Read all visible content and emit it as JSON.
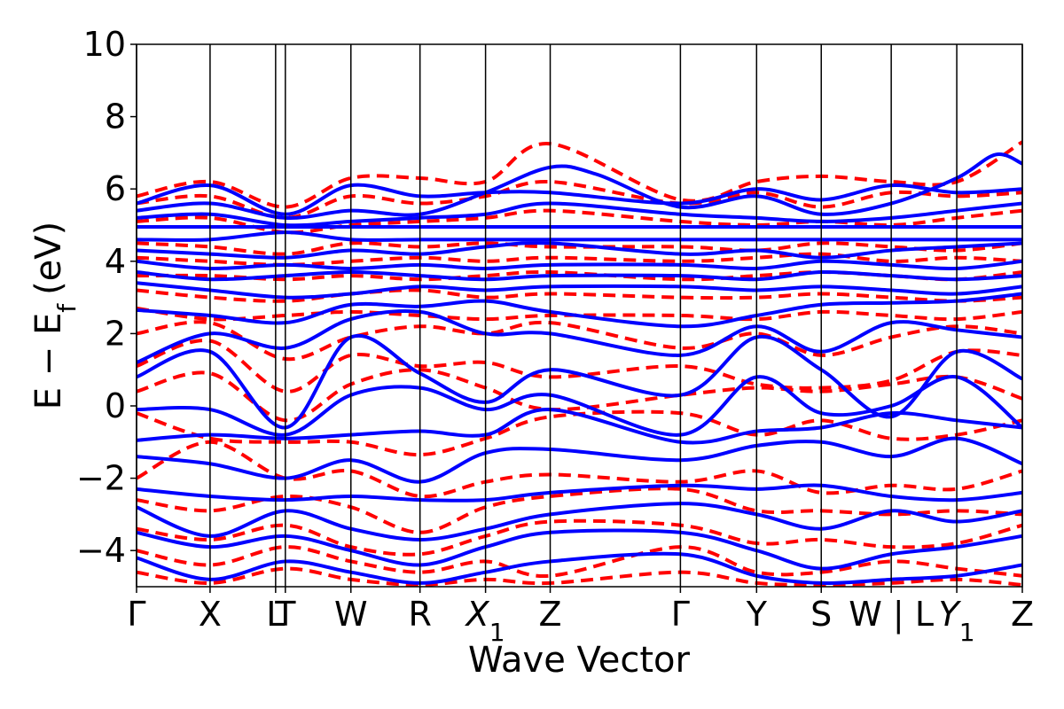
{
  "chart_data": {
    "type": "line",
    "xlabel": "Wave Vector",
    "ylabel": "E − E_f (eV)",
    "ylabel_parts": {
      "main": "E − E",
      "sub": "f",
      "unit": "(eV)"
    },
    "ylim": [
      -5,
      10
    ],
    "yticks": [
      -4,
      -2,
      0,
      2,
      4,
      6,
      8,
      10
    ],
    "ytick_labels": [
      "−4",
      "−2",
      "0",
      "2",
      "4",
      "6",
      "8",
      "10"
    ],
    "xlim": [
      0,
      10
    ],
    "kpoints": [
      {
        "label": "Γ",
        "x": 0.0
      },
      {
        "label": "X",
        "x": 0.83
      },
      {
        "label": "L",
        "x": 1.57
      },
      {
        "label": "T",
        "x": 1.68
      },
      {
        "label": "W",
        "x": 2.42
      },
      {
        "label": "R",
        "x": 3.2
      },
      {
        "label": "X",
        "sub": "1",
        "x": 3.94
      },
      {
        "label": "Z",
        "x": 4.67
      },
      {
        "label": "Γ",
        "x": 6.14
      },
      {
        "label": "Y",
        "x": 7.0
      },
      {
        "label": "S",
        "x": 7.73
      },
      {
        "label": "W | L",
        "x": 8.52
      },
      {
        "label": "Y",
        "sub": "1",
        "x": 9.26
      },
      {
        "label": "Z",
        "x": 10.0
      }
    ],
    "grid": false,
    "legend": "none",
    "series_styles": [
      {
        "color": "#0000ff",
        "dash": "solid"
      },
      {
        "color": "#ff0000",
        "dash": "dashed"
      }
    ],
    "series": [
      {
        "style": 0,
        "x": [
          0,
          0.83,
          1.68,
          2.42,
          3.2,
          3.94,
          4.67,
          6.14,
          7.0,
          7.73,
          8.52,
          9.26,
          10.0
        ],
        "y": [
          4.95,
          4.95,
          4.95,
          4.95,
          4.95,
          4.95,
          4.95,
          4.95,
          4.95,
          4.95,
          4.95,
          4.95,
          4.95
        ]
      },
      {
        "style": 0,
        "x": [
          0,
          0.83,
          1.68,
          2.42,
          3.2,
          3.94,
          4.67,
          6.14,
          7.0,
          7.73,
          8.52,
          9.26,
          10.0
        ],
        "y": [
          5.6,
          6.1,
          5.3,
          6.1,
          5.8,
          5.9,
          5.9,
          5.6,
          6.0,
          5.7,
          6.1,
          5.9,
          6.0
        ]
      },
      {
        "style": 0,
        "x": [
          0,
          0.83,
          1.68,
          2.42,
          3.2,
          3.94,
          4.67,
          5.2,
          6.14,
          7.0,
          7.73,
          8.52,
          9.26,
          9.7,
          10.0
        ],
        "y": [
          5.4,
          5.6,
          5.2,
          5.4,
          5.3,
          5.9,
          6.6,
          6.4,
          5.5,
          5.8,
          5.3,
          5.6,
          6.3,
          6.95,
          6.7
        ]
      },
      {
        "style": 0,
        "x": [
          0,
          0.83,
          1.68,
          2.42,
          3.2,
          3.94,
          4.67,
          6.14,
          7.0,
          7.73,
          8.52,
          9.26,
          10.0
        ],
        "y": [
          5.2,
          5.3,
          5.0,
          5.1,
          5.2,
          5.3,
          5.6,
          5.3,
          5.2,
          5.1,
          5.2,
          5.4,
          5.6
        ]
      },
      {
        "style": 0,
        "x": [
          0,
          0.83,
          1.68,
          2.42,
          3.2,
          3.94,
          4.67,
          6.14,
          7.0,
          7.73,
          8.52,
          9.26,
          10.0
        ],
        "y": [
          4.6,
          4.6,
          4.8,
          4.6,
          4.6,
          4.6,
          4.6,
          4.6,
          4.6,
          4.6,
          4.6,
          4.6,
          4.6
        ]
      },
      {
        "style": 0,
        "x": [
          0,
          0.83,
          1.68,
          2.42,
          3.2,
          3.94,
          4.67,
          6.14,
          7.0,
          7.73,
          8.52,
          9.26,
          10.0
        ],
        "y": [
          4.3,
          4.2,
          4.1,
          4.3,
          4.2,
          4.4,
          4.5,
          4.2,
          4.3,
          4.1,
          4.3,
          4.4,
          4.5
        ]
      },
      {
        "style": 0,
        "x": [
          0,
          0.83,
          1.68,
          2.42,
          3.2,
          3.94,
          4.67,
          6.14,
          7.0,
          7.73,
          8.52,
          9.26,
          10.0
        ],
        "y": [
          4.0,
          3.8,
          3.9,
          3.8,
          3.9,
          3.8,
          3.9,
          3.9,
          3.8,
          4.0,
          3.9,
          3.8,
          4.0
        ]
      },
      {
        "style": 0,
        "x": [
          0,
          0.83,
          1.68,
          2.42,
          3.2,
          3.94,
          4.67,
          6.14,
          7.0,
          7.73,
          8.52,
          9.26,
          10.0
        ],
        "y": [
          3.7,
          3.5,
          3.6,
          3.7,
          3.6,
          3.5,
          3.6,
          3.6,
          3.5,
          3.7,
          3.6,
          3.5,
          3.6
        ]
      },
      {
        "style": 0,
        "x": [
          0,
          0.83,
          1.68,
          2.42,
          3.2,
          3.94,
          4.67,
          6.14,
          7.0,
          7.73,
          8.52,
          9.26,
          10.0
        ],
        "y": [
          3.4,
          3.2,
          3.0,
          3.1,
          3.3,
          3.2,
          3.3,
          3.3,
          3.2,
          3.3,
          3.2,
          3.1,
          3.3
        ]
      },
      {
        "style": 0,
        "x": [
          0,
          0.83,
          1.68,
          2.42,
          3.2,
          3.94,
          4.67,
          6.14,
          7.0,
          7.73,
          8.52,
          9.26,
          10.0
        ],
        "y": [
          2.65,
          2.5,
          2.3,
          2.8,
          2.75,
          2.9,
          2.6,
          2.2,
          2.5,
          2.8,
          2.85,
          2.9,
          3.1
        ]
      },
      {
        "style": 0,
        "x": [
          0,
          0.83,
          1.68,
          2.42,
          3.2,
          3.94,
          4.67,
          6.14,
          7.0,
          7.73,
          8.52,
          9.26,
          10.0
        ],
        "y": [
          1.2,
          2.0,
          1.6,
          2.4,
          2.6,
          2.0,
          2.0,
          1.4,
          2.2,
          1.5,
          2.3,
          2.1,
          1.9
        ]
      },
      {
        "style": 0,
        "x": [
          0,
          0.83,
          1.68,
          2.42,
          3.2,
          3.94,
          4.67,
          6.14,
          7.0,
          7.73,
          8.52,
          9.26,
          10.0
        ],
        "y": [
          0.8,
          1.5,
          -0.6,
          1.9,
          0.9,
          0.1,
          1.0,
          0.3,
          1.9,
          1.0,
          -0.3,
          1.5,
          0.75
        ]
      },
      {
        "style": 0,
        "x": [
          0,
          0.83,
          1.68,
          2.42,
          3.2,
          3.94,
          4.67,
          6.14,
          7.0,
          7.73,
          8.52,
          9.26,
          10.0
        ],
        "y": [
          -0.1,
          -0.1,
          -0.8,
          0.3,
          0.5,
          -0.1,
          0.3,
          -0.8,
          0.8,
          -0.2,
          0.0,
          0.8,
          -0.6
        ]
      },
      {
        "style": 0,
        "x": [
          0,
          0.83,
          1.68,
          2.42,
          3.2,
          3.94,
          4.67,
          6.14,
          7.0,
          7.73,
          8.52,
          9.26,
          10.0
        ],
        "y": [
          -0.95,
          -0.8,
          -0.9,
          -0.8,
          -0.7,
          -0.8,
          -0.1,
          -1.0,
          -0.7,
          -0.6,
          -0.2,
          -0.4,
          -0.6
        ]
      },
      {
        "style": 0,
        "x": [
          0,
          0.83,
          1.68,
          2.42,
          3.2,
          3.94,
          4.67,
          6.14,
          7.0,
          7.73,
          8.52,
          9.26,
          10.0
        ],
        "y": [
          -1.4,
          -1.6,
          -2.0,
          -1.5,
          -2.1,
          -1.3,
          -1.2,
          -1.5,
          -1.1,
          -1.0,
          -1.4,
          -0.9,
          -1.6
        ]
      },
      {
        "style": 0,
        "x": [
          0,
          0.83,
          1.68,
          2.42,
          3.2,
          3.94,
          4.67,
          6.14,
          7.0,
          7.73,
          8.52,
          9.26,
          10.0
        ],
        "y": [
          -2.3,
          -2.5,
          -2.6,
          -2.5,
          -2.6,
          -2.6,
          -2.4,
          -2.2,
          -2.3,
          -2.2,
          -2.5,
          -2.6,
          -2.4
        ]
      },
      {
        "style": 0,
        "x": [
          0,
          0.83,
          1.68,
          2.42,
          3.2,
          3.94,
          4.67,
          6.14,
          7.0,
          7.73,
          8.52,
          9.26,
          10.0
        ],
        "y": [
          -2.8,
          -3.6,
          -2.9,
          -3.4,
          -3.7,
          -3.4,
          -3.0,
          -2.7,
          -3.0,
          -3.4,
          -2.9,
          -3.2,
          -2.9
        ]
      },
      {
        "style": 0,
        "x": [
          0,
          0.83,
          1.68,
          2.42,
          3.2,
          3.94,
          4.67,
          6.14,
          7.0,
          7.73,
          8.52,
          9.26,
          10.0
        ],
        "y": [
          -3.5,
          -3.9,
          -3.6,
          -4.0,
          -4.4,
          -3.9,
          -3.5,
          -3.5,
          -4.0,
          -4.5,
          -4.1,
          -3.9,
          -3.6
        ]
      },
      {
        "style": 0,
        "x": [
          0,
          0.83,
          1.68,
          2.42,
          3.2,
          3.94,
          4.67,
          6.14,
          7.0,
          7.73,
          8.52,
          9.26,
          10.0
        ],
        "y": [
          -4.2,
          -4.8,
          -4.3,
          -4.6,
          -4.9,
          -4.6,
          -4.3,
          -4.1,
          -4.7,
          -4.9,
          -4.8,
          -4.7,
          -4.4
        ]
      },
      {
        "style": 1,
        "x": [
          0,
          0.83,
          1.68,
          2.42,
          3.2,
          3.94,
          4.67,
          6.14,
          7.0,
          7.73,
          8.52,
          9.26,
          10.0
        ],
        "y": [
          5.8,
          6.2,
          5.5,
          6.3,
          6.3,
          6.2,
          7.25,
          5.7,
          6.2,
          6.35,
          6.2,
          6.2,
          7.3
        ]
      },
      {
        "style": 1,
        "x": [
          0,
          0.83,
          1.68,
          2.42,
          3.2,
          3.94,
          4.67,
          6.14,
          7.0,
          7.73,
          8.52,
          9.26,
          10.0
        ],
        "y": [
          5.6,
          5.8,
          5.2,
          5.8,
          5.6,
          5.8,
          6.2,
          5.6,
          5.9,
          5.5,
          5.9,
          5.8,
          5.9
        ]
      },
      {
        "style": 1,
        "x": [
          0,
          0.83,
          1.68,
          2.42,
          3.2,
          3.94,
          4.67,
          6.14,
          7.0,
          7.73,
          8.52,
          9.26,
          10.0
        ],
        "y": [
          5.1,
          5.2,
          4.8,
          5.0,
          5.1,
          5.2,
          5.4,
          5.1,
          5.0,
          5.1,
          5.0,
          5.2,
          5.4
        ]
      },
      {
        "style": 1,
        "x": [
          0,
          0.83,
          1.68,
          2.42,
          3.2,
          3.94,
          4.67,
          6.14,
          7.0,
          7.73,
          8.52,
          9.26,
          10.0
        ],
        "y": [
          4.5,
          4.4,
          4.2,
          4.5,
          4.4,
          4.5,
          4.4,
          4.4,
          4.3,
          4.5,
          4.4,
          4.3,
          4.5
        ]
      },
      {
        "style": 1,
        "x": [
          0,
          0.83,
          1.68,
          2.42,
          3.2,
          3.94,
          4.67,
          6.14,
          7.0,
          7.73,
          8.52,
          9.26,
          10.0
        ],
        "y": [
          4.1,
          4.0,
          3.9,
          4.0,
          4.1,
          4.0,
          4.1,
          4.0,
          4.1,
          4.2,
          4.0,
          4.1,
          4.0
        ]
      },
      {
        "style": 1,
        "x": [
          0,
          0.83,
          1.68,
          2.42,
          3.2,
          3.94,
          4.67,
          6.14,
          7.0,
          7.73,
          8.52,
          9.26,
          10.0
        ],
        "y": [
          3.6,
          3.6,
          3.5,
          3.6,
          3.5,
          3.6,
          3.7,
          3.5,
          3.6,
          3.7,
          3.6,
          3.5,
          3.7
        ]
      },
      {
        "style": 1,
        "x": [
          0,
          0.83,
          1.68,
          2.42,
          3.2,
          3.94,
          4.67,
          6.14,
          7.0,
          7.73,
          8.52,
          9.26,
          10.0
        ],
        "y": [
          3.2,
          3.0,
          2.9,
          3.1,
          3.2,
          3.0,
          3.1,
          3.0,
          3.0,
          3.1,
          3.0,
          2.9,
          3.0
        ]
      },
      {
        "style": 1,
        "x": [
          0,
          0.83,
          1.68,
          2.42,
          3.2,
          3.94,
          4.67,
          6.14,
          7.0,
          7.73,
          8.52,
          9.26,
          10.0
        ],
        "y": [
          2.7,
          2.4,
          2.5,
          2.6,
          2.5,
          2.4,
          2.5,
          2.5,
          2.4,
          2.6,
          2.5,
          2.4,
          2.6
        ]
      },
      {
        "style": 1,
        "x": [
          0,
          0.83,
          1.68,
          2.42,
          3.2,
          3.94,
          4.67,
          6.14,
          7.0,
          7.73,
          8.52,
          9.26,
          10.0
        ],
        "y": [
          2.0,
          2.3,
          1.3,
          1.9,
          2.2,
          2.0,
          2.3,
          1.6,
          2.0,
          1.4,
          1.9,
          2.2,
          2.0
        ]
      },
      {
        "style": 1,
        "x": [
          0,
          0.83,
          1.68,
          2.42,
          3.2,
          3.94,
          4.67,
          6.14,
          7.0,
          7.73,
          8.52,
          9.26,
          10.0
        ],
        "y": [
          1.1,
          1.8,
          0.4,
          1.4,
          1.1,
          1.2,
          0.8,
          1.1,
          0.6,
          0.5,
          0.7,
          1.5,
          1.4
        ]
      },
      {
        "style": 1,
        "x": [
          0,
          0.83,
          1.68,
          2.42,
          3.2,
          3.94,
          4.67,
          6.14,
          7.0,
          7.73,
          8.52,
          9.26,
          10.0
        ],
        "y": [
          0.4,
          0.9,
          -0.4,
          0.6,
          1.0,
          0.5,
          -0.1,
          0.3,
          0.5,
          0.4,
          0.6,
          0.8,
          0.2
        ]
      },
      {
        "style": 1,
        "x": [
          0,
          0.83,
          1.68,
          2.42,
          3.2,
          3.94,
          4.67,
          6.14,
          7.0,
          7.73,
          8.52,
          9.26,
          10.0
        ],
        "y": [
          -0.2,
          -0.9,
          -1.0,
          -1.0,
          -1.35,
          -0.9,
          -0.3,
          -0.2,
          -0.8,
          -0.4,
          -0.9,
          -0.8,
          -0.4
        ]
      },
      {
        "style": 1,
        "x": [
          0,
          0.83,
          1.68,
          2.42,
          3.2,
          3.94,
          4.67,
          6.14,
          7.0,
          7.73,
          8.52,
          9.26,
          10.0
        ],
        "y": [
          -2.0,
          -1.0,
          -2.0,
          -1.8,
          -2.5,
          -2.1,
          -1.9,
          -2.1,
          -1.8,
          -2.4,
          -2.2,
          -2.3,
          -1.8
        ]
      },
      {
        "style": 1,
        "x": [
          0,
          0.83,
          1.68,
          2.42,
          3.2,
          3.94,
          4.67,
          6.14,
          7.0,
          7.73,
          8.52,
          9.26,
          10.0
        ],
        "y": [
          -2.6,
          -2.9,
          -2.5,
          -2.8,
          -3.5,
          -2.8,
          -2.5,
          -2.3,
          -2.9,
          -2.9,
          -3.0,
          -2.9,
          -3.0
        ]
      },
      {
        "style": 1,
        "x": [
          0,
          0.83,
          1.68,
          2.42,
          3.2,
          3.94,
          4.67,
          6.14,
          7.0,
          7.73,
          8.52,
          9.26,
          10.0
        ],
        "y": [
          -3.4,
          -3.7,
          -3.3,
          -3.9,
          -4.1,
          -3.6,
          -3.2,
          -3.3,
          -3.8,
          -3.7,
          -3.9,
          -3.8,
          -3.3
        ]
      },
      {
        "style": 1,
        "x": [
          0,
          0.83,
          1.68,
          2.42,
          3.2,
          3.94,
          4.67,
          6.14,
          7.0,
          7.73,
          8.52,
          9.26,
          10.0
        ],
        "y": [
          -4.0,
          -4.4,
          -3.9,
          -4.3,
          -4.6,
          -4.3,
          -4.7,
          -3.9,
          -4.6,
          -4.6,
          -4.3,
          -4.5,
          -4.7
        ]
      },
      {
        "style": 1,
        "x": [
          0,
          0.83,
          1.68,
          2.42,
          3.2,
          3.94,
          4.67,
          6.14,
          7.0,
          7.73,
          8.52,
          9.26,
          10.0
        ],
        "y": [
          -4.6,
          -4.9,
          -4.5,
          -4.8,
          -4.95,
          -4.8,
          -4.9,
          -4.6,
          -4.9,
          -4.95,
          -4.9,
          -4.8,
          -4.95
        ]
      }
    ]
  }
}
